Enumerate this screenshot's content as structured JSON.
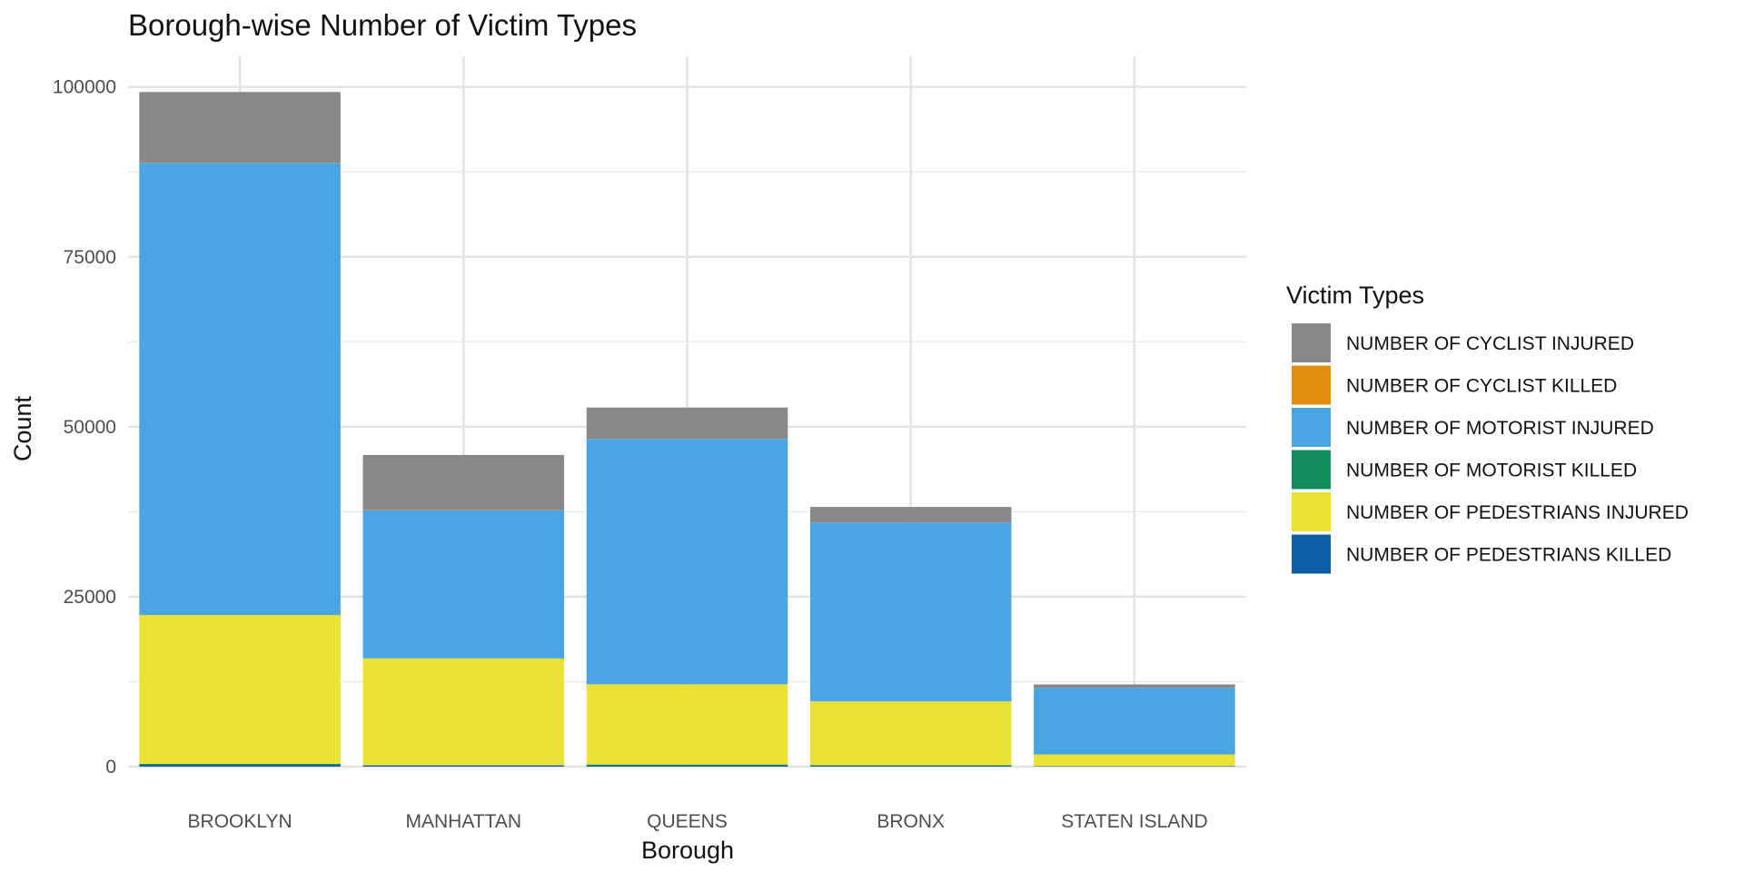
{
  "chart_data": {
    "type": "bar",
    "stacked": true,
    "title": "Borough-wise Number of Victim Types",
    "xlabel": "Borough",
    "ylabel": "Count",
    "ylim": [
      0,
      104500
    ],
    "yticks": [
      0,
      25000,
      50000,
      75000,
      100000
    ],
    "grid": true,
    "legend_position": "right",
    "legend_title": "Victim Types",
    "categories": [
      "BROOKLYN",
      "MANHATTAN",
      "QUEENS",
      "BRONX",
      "STATEN ISLAND"
    ],
    "series": [
      {
        "name": "NUMBER OF PEDESTRIANS KILLED",
        "color": "#0b5fa6",
        "values": [
          270,
          180,
          190,
          140,
          60
        ]
      },
      {
        "name": "NUMBER OF MOTORIST KILLED",
        "color": "#128c5e",
        "values": [
          140,
          40,
          120,
          60,
          30
        ]
      },
      {
        "name": "NUMBER OF PEDESTRIANS INJURED",
        "color": "#ece237",
        "values": [
          21900,
          15700,
          11800,
          9400,
          1700
        ]
      },
      {
        "name": "NUMBER OF MOTORIST INJURED",
        "color": "#4aa5e3",
        "values": [
          66500,
          21800,
          36100,
          26300,
          9800
        ]
      },
      {
        "name": "NUMBER OF CYCLIST KILLED",
        "color": "#e28f10",
        "values": [
          40,
          30,
          20,
          10,
          5
        ]
      },
      {
        "name": "NUMBER OF CYCLIST INJURED",
        "color": "#888888",
        "values": [
          10400,
          8100,
          4600,
          2300,
          500
        ]
      }
    ],
    "legend_order": [
      "NUMBER OF CYCLIST INJURED",
      "NUMBER OF CYCLIST KILLED",
      "NUMBER OF MOTORIST INJURED",
      "NUMBER OF MOTORIST KILLED",
      "NUMBER OF PEDESTRIANS INJURED",
      "NUMBER OF PEDESTRIANS KILLED"
    ]
  }
}
